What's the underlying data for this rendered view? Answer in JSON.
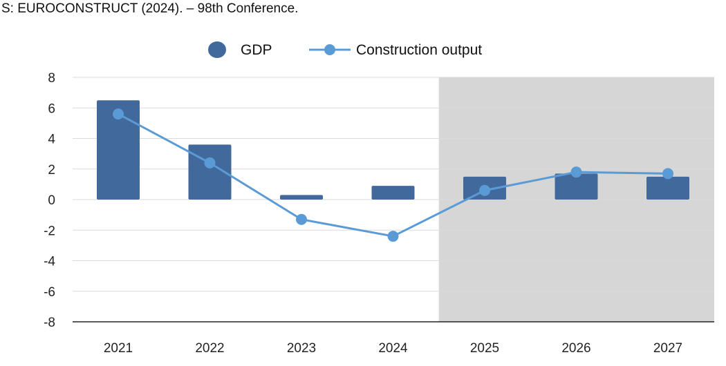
{
  "source_note": "S: EUROCONSTRUCT (2024). – 98th Conference.",
  "colors": {
    "gdp_bar": "#41699c",
    "construction_line": "#5b9bd5",
    "forecast_shade": "#d6d6d6",
    "grid": "#dadada",
    "axis": "#222222"
  },
  "chart_data": {
    "type": "bar",
    "categories": [
      "2021",
      "2022",
      "2023",
      "2024",
      "2025",
      "2026",
      "2027"
    ],
    "series": [
      {
        "name": "GDP",
        "type": "bar",
        "values": [
          6.5,
          3.6,
          0.3,
          0.9,
          1.5,
          1.7,
          1.5
        ]
      },
      {
        "name": "Construction output",
        "type": "line",
        "values": [
          5.6,
          2.4,
          -1.3,
          -2.4,
          0.6,
          1.8,
          1.7
        ]
      }
    ],
    "legend": [
      "GDP",
      "Construction output"
    ],
    "legend_position": "top-center",
    "y_ticks": [
      "8",
      "6",
      "4",
      "2",
      "0",
      "-2",
      "-4",
      "-6",
      "-8"
    ],
    "ylim": [
      -8,
      8
    ],
    "forecast_shaded_from": "2025",
    "grid": true,
    "title": "",
    "xlabel": "",
    "ylabel": ""
  }
}
